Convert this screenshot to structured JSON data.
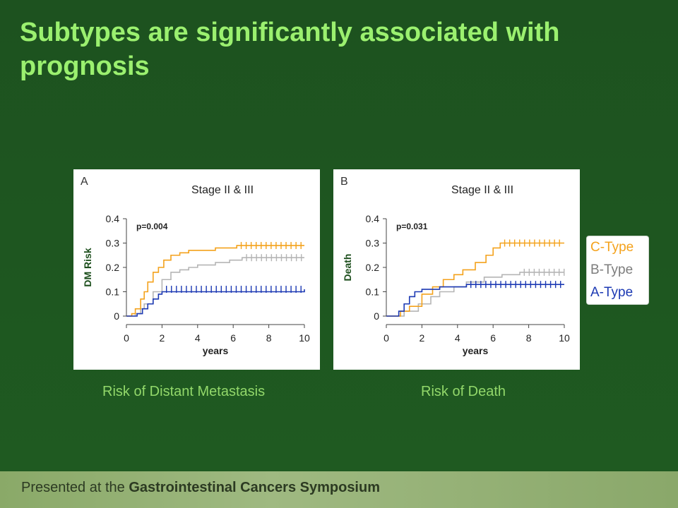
{
  "slide": {
    "title": "Subtypes are significantly associated with prognosis",
    "footer_prefix": "Presented at the ",
    "footer_bold": "Gastrointestinal Cancers Symposium"
  },
  "legend": {
    "items": [
      {
        "label": "C-Type",
        "color": "#f4a21c"
      },
      {
        "label": "B-Type",
        "color": "#7d7d7d"
      },
      {
        "label": "A-Type",
        "color": "#1c39b3"
      }
    ]
  },
  "captions": [
    "Risk of Distant Metastasis",
    "Risk of Death"
  ],
  "chart_data": [
    {
      "type": "line",
      "panel_label": "A",
      "title": "Stage II & III",
      "annotation": "p=0.004",
      "xlabel": "years",
      "ylabel": "DM Risk",
      "xlim": [
        0,
        10
      ],
      "ylim": [
        0,
        0.4
      ],
      "xticks": [
        "0",
        "2",
        "4",
        "6",
        "8",
        "10"
      ],
      "yticks": [
        "0",
        "0.1",
        "0.2",
        "0.3",
        "0.4"
      ],
      "series": [
        {
          "name": "C-Type",
          "color": "#f4a21c",
          "x": [
            0,
            0.3,
            0.5,
            0.8,
            1.0,
            1.2,
            1.5,
            1.8,
            2.1,
            2.5,
            3.0,
            3.5,
            4.2,
            5.0,
            5.6,
            6.2,
            10
          ],
          "y": [
            0,
            0.01,
            0.03,
            0.07,
            0.1,
            0.14,
            0.18,
            0.2,
            0.23,
            0.25,
            0.26,
            0.27,
            0.27,
            0.28,
            0.28,
            0.29,
            0.29
          ]
        },
        {
          "name": "B-Type",
          "color": "#b5b5b5",
          "x": [
            0,
            0.5,
            0.8,
            1.0,
            1.5,
            2.0,
            2.5,
            3.0,
            3.5,
            4.0,
            5.0,
            5.8,
            6.5,
            10
          ],
          "y": [
            0,
            0.01,
            0.03,
            0.05,
            0.1,
            0.15,
            0.18,
            0.19,
            0.2,
            0.21,
            0.22,
            0.23,
            0.24,
            0.24
          ]
        },
        {
          "name": "A-Type",
          "color": "#1c39b3",
          "x": [
            0,
            0.6,
            0.9,
            1.2,
            1.5,
            1.8,
            2.0,
            10
          ],
          "y": [
            0,
            0.01,
            0.03,
            0.05,
            0.07,
            0.09,
            0.1,
            0.11
          ]
        }
      ]
    },
    {
      "type": "line",
      "panel_label": "B",
      "title": "Stage II & III",
      "annotation": "p=0.031",
      "xlabel": "years",
      "ylabel": "Death",
      "xlim": [
        0,
        10
      ],
      "ylim": [
        0,
        0.4
      ],
      "xticks": [
        "0",
        "2",
        "4",
        "6",
        "8",
        "10"
      ],
      "yticks": [
        "0",
        "0.1",
        "0.2",
        "0.3",
        "0.4"
      ],
      "series": [
        {
          "name": "C-Type",
          "color": "#f4a21c",
          "x": [
            0,
            0.8,
            1.3,
            2.0,
            2.6,
            3.2,
            3.8,
            4.3,
            5.0,
            5.6,
            6.0,
            6.4,
            10
          ],
          "y": [
            0,
            0.02,
            0.04,
            0.09,
            0.12,
            0.15,
            0.17,
            0.19,
            0.22,
            0.25,
            0.28,
            0.3,
            0.3
          ]
        },
        {
          "name": "B-Type",
          "color": "#b5b5b5",
          "x": [
            0,
            1.0,
            1.8,
            2.5,
            3.0,
            3.8,
            4.5,
            5.5,
            6.5,
            7.5,
            10
          ],
          "y": [
            0,
            0.02,
            0.05,
            0.08,
            0.1,
            0.12,
            0.14,
            0.16,
            0.17,
            0.18,
            0.18
          ]
        },
        {
          "name": "A-Type",
          "color": "#1c39b3",
          "x": [
            0,
            0.7,
            1.0,
            1.3,
            1.6,
            2.0,
            3.0,
            4.5,
            10
          ],
          "y": [
            0,
            0.02,
            0.05,
            0.08,
            0.1,
            0.11,
            0.12,
            0.13,
            0.13
          ]
        }
      ]
    }
  ]
}
